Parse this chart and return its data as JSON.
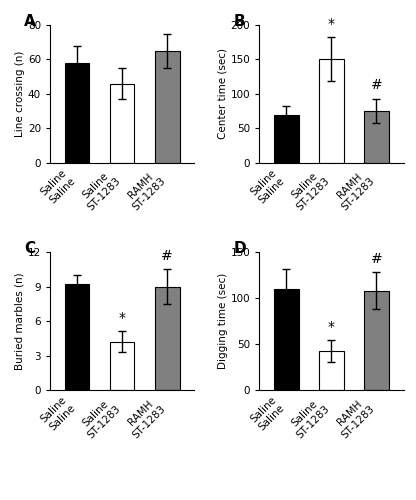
{
  "panels": [
    {
      "label": "A",
      "ylabel": "Line crossing (n)",
      "ylim": [
        0,
        80
      ],
      "yticks": [
        0,
        20,
        40,
        60,
        80
      ],
      "bars": [
        {
          "label": "Saline\nSaline",
          "value": 58,
          "err": 10,
          "color": "#000000"
        },
        {
          "label": "Saline\nST-1283",
          "value": 46,
          "err": 9,
          "color": "#ffffff"
        },
        {
          "label": "RAMH\nST-1283",
          "value": 65,
          "err": 10,
          "color": "#808080"
        }
      ],
      "sig_labels": []
    },
    {
      "label": "B",
      "ylabel": "Center time (sec)",
      "ylim": [
        0,
        200
      ],
      "yticks": [
        0,
        50,
        100,
        150,
        200
      ],
      "bars": [
        {
          "label": "Saline\nSaline",
          "value": 70,
          "err": 12,
          "color": "#000000"
        },
        {
          "label": "Saline\nST-1283",
          "value": 150,
          "err": 32,
          "color": "#ffffff"
        },
        {
          "label": "RAMH\nST-1283",
          "value": 75,
          "err": 17,
          "color": "#808080"
        }
      ],
      "sig_labels": [
        {
          "bar_idx": 1,
          "text": "*"
        },
        {
          "bar_idx": 2,
          "text": "#"
        }
      ]
    },
    {
      "label": "C",
      "ylabel": "Buried marbles (n)",
      "ylim": [
        0,
        12
      ],
      "yticks": [
        0,
        3,
        6,
        9,
        12
      ],
      "bars": [
        {
          "label": "Saline\nSaline",
          "value": 9.2,
          "err": 0.8,
          "color": "#000000"
        },
        {
          "label": "Saline\nST-1283",
          "value": 4.2,
          "err": 0.9,
          "color": "#ffffff"
        },
        {
          "label": "RAMH\nST-1283",
          "value": 9.0,
          "err": 1.5,
          "color": "#808080"
        }
      ],
      "sig_labels": [
        {
          "bar_idx": 1,
          "text": "*"
        },
        {
          "bar_idx": 2,
          "text": "#"
        }
      ]
    },
    {
      "label": "D",
      "ylabel": "Digging time (sec)",
      "ylim": [
        0,
        150
      ],
      "yticks": [
        0,
        50,
        100,
        150
      ],
      "bars": [
        {
          "label": "Saline\nSaline",
          "value": 110,
          "err": 22,
          "color": "#000000"
        },
        {
          "label": "Saline\nST-1283",
          "value": 42,
          "err": 12,
          "color": "#ffffff"
        },
        {
          "label": "RAMH\nST-1283",
          "value": 108,
          "err": 20,
          "color": "#808080"
        }
      ],
      "sig_labels": [
        {
          "bar_idx": 1,
          "text": "*"
        },
        {
          "bar_idx": 2,
          "text": "#"
        }
      ]
    }
  ],
  "bar_width": 0.55,
  "bar_edge_color": "#000000",
  "bar_edge_lw": 0.8,
  "capsize": 3,
  "error_lw": 1.0,
  "label_fontsize": 7.5,
  "tick_fontsize": 7.5,
  "panel_label_fontsize": 11,
  "sig_fontsize": 10,
  "xtick_rotation": 45,
  "background_color": "#ffffff"
}
